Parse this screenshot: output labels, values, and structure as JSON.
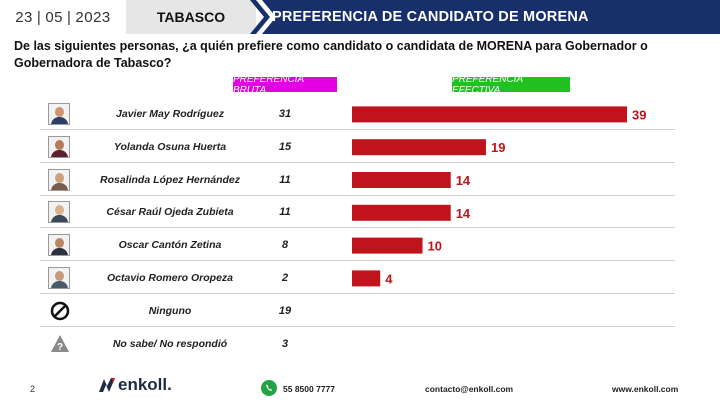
{
  "header": {
    "date_day": "23",
    "date_month": "05",
    "date_year": "2023",
    "state": "TABASCO",
    "title": "PREFERENCIA DE CANDIDATO DE MORENA"
  },
  "question": "De las siguientes personas, ¿a quién prefiere como candidato o candidata de MORENA para Gobernador o Gobernadora de Tabasco?",
  "labels": {
    "bruta": "PREFERENCIA BRUTA",
    "efectiva": "PREFERENCIA EFECTIVA"
  },
  "colors": {
    "header_bg": "#17306b",
    "bar": "#c0141c",
    "bruta_label": "#e400e4",
    "efectiva_label": "#22c122",
    "value_text": "#c0141c"
  },
  "rows": [
    {
      "name": "Javier May Rodríguez",
      "bruta": "31",
      "icon": "person-photo-icon"
    },
    {
      "name": "Yolanda Osuna Huerta",
      "bruta": "15",
      "icon": "person-photo-icon"
    },
    {
      "name": "Rosalinda López Hernández",
      "bruta": "11",
      "icon": "person-photo-icon"
    },
    {
      "name": "César Raúl Ojeda Zubieta",
      "bruta": "11",
      "icon": "person-photo-icon"
    },
    {
      "name": "Oscar Cantón Zetina",
      "bruta": "8",
      "icon": "person-photo-icon"
    },
    {
      "name": "Octavio Romero Oropeza",
      "bruta": "2",
      "icon": "person-photo-icon"
    },
    {
      "name": "Ninguno",
      "bruta": "19",
      "icon": "prohibited-icon"
    },
    {
      "name": "No sabe/ No respondió",
      "bruta": "3",
      "icon": "question-mark-icon"
    }
  ],
  "chart_data": {
    "type": "bar",
    "orientation": "horizontal",
    "title": "PREFERENCIA EFECTIVA",
    "categories": [
      "Javier May Rodríguez",
      "Yolanda Osuna Huerta",
      "Rosalinda López Hernández",
      "César Raúl Ojeda Zubieta",
      "Oscar Cantón Zetina",
      "Octavio Romero Oropeza"
    ],
    "values": [
      39,
      19,
      14,
      14,
      10,
      4
    ],
    "xlim": [
      0,
      40
    ],
    "grid": false,
    "legend": "none"
  },
  "footer": {
    "page": "2",
    "brand": "enkoll.",
    "phone": "55 8500 7777",
    "email": "contacto@enkoll.com",
    "web": "www.enkoll.com"
  }
}
